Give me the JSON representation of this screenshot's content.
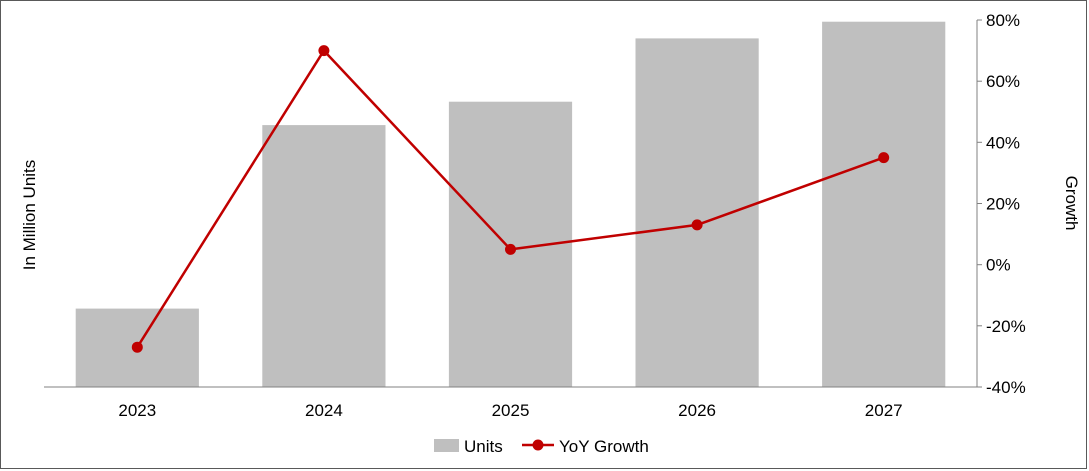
{
  "chart_data": {
    "type": "bar",
    "categories": [
      "2023",
      "2024",
      "2025",
      "2026",
      "2027"
    ],
    "series": [
      {
        "name": "Units",
        "type": "bar",
        "axis": "left",
        "color": "#bfbfbf",
        "values": [
          0.47,
          1.57,
          1.71,
          2.09,
          2.19
        ]
      },
      {
        "name": "YoY Growth",
        "type": "line",
        "axis": "right",
        "color": "#c00000",
        "values": [
          -27,
          70,
          5,
          13,
          35
        ]
      }
    ],
    "ylabel": "In Million Units",
    "y2label": "Growth",
    "ylim": [
      0,
      2.2
    ],
    "y2lim": [
      -40,
      80
    ],
    "y2ticks": [
      "-40%",
      "-20%",
      "0%",
      "20%",
      "40%",
      "60%",
      "80%"
    ],
    "legend_position": "bottom",
    "grid": false
  }
}
